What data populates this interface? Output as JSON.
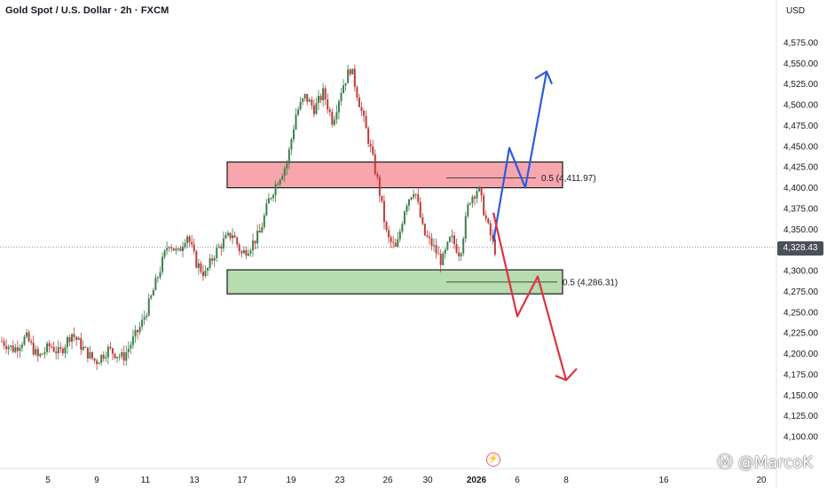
{
  "header": {
    "title": "Gold Spot / U.S. Dollar · 2h · FXCM",
    "currency": "USD"
  },
  "price_tag": {
    "value": "4,328.43"
  },
  "watermark": {
    "text": "Ⓜ @MarcoK"
  },
  "colors": {
    "up_candle": "#3c7f4a",
    "down_candle": "#c23a3a",
    "resistance_zone": "#f7a6ad",
    "support_zone": "#b6dcb0",
    "bull_arrow": "#2c5bdc",
    "bear_arrow": "#e0313f",
    "axis_text": "#131722"
  },
  "chart_data": {
    "type": "candlestick",
    "symbol": "Gold Spot / U.S. Dollar",
    "timeframe": "2h",
    "source": "FXCM",
    "ylim": [
      4075,
      4600
    ],
    "y_ticks": [
      "4,100.00",
      "4,125.00",
      "4,150.00",
      "4,175.00",
      "4,200.00",
      "4,225.00",
      "4,250.00",
      "4,275.00",
      "4,300.00",
      "4,325.00",
      "4,350.00",
      "4,375.00",
      "4,400.00",
      "4,425.00",
      "4,450.00",
      "4,475.00",
      "4,500.00",
      "4,525.00",
      "4,550.00",
      "4,575.00"
    ],
    "x_ticks": [
      "5",
      "9",
      "11",
      "13",
      "17",
      "19",
      "23",
      "26",
      "30",
      "2026",
      "6",
      "8",
      "16",
      "20"
    ],
    "last_price": 4328.43,
    "price_path": [
      [
        0,
        4215
      ],
      [
        0.04,
        4205
      ],
      [
        0.08,
        4220
      ],
      [
        0.12,
        4195
      ],
      [
        0.16,
        4210
      ],
      [
        0.19,
        4200
      ],
      [
        0.23,
        4225
      ],
      [
        0.27,
        4205
      ],
      [
        0.31,
        4190
      ],
      [
        0.35,
        4205
      ],
      [
        0.4,
        4195
      ],
      [
        0.43,
        4215
      ],
      [
        0.46,
        4235
      ],
      [
        0.49,
        4265
      ],
      [
        0.52,
        4300
      ],
      [
        0.55,
        4335
      ],
      [
        0.58,
        4320
      ],
      [
        0.61,
        4345
      ],
      [
        0.64,
        4310
      ],
      [
        0.67,
        4295
      ],
      [
        0.7,
        4320
      ],
      [
        0.73,
        4335
      ],
      [
        0.76,
        4345
      ],
      [
        0.79,
        4320
      ],
      [
        0.82,
        4330
      ],
      [
        0.85,
        4345
      ],
      [
        0.88,
        4385
      ],
      [
        0.91,
        4410
      ],
      [
        0.94,
        4430
      ],
      [
        0.97,
        4490
      ],
      [
        1.0,
        4510
      ],
      [
        1.03,
        4495
      ],
      [
        1.06,
        4515
      ],
      [
        1.09,
        4480
      ],
      [
        1.12,
        4520
      ],
      [
        1.15,
        4545
      ],
      [
        1.18,
        4500
      ],
      [
        1.21,
        4455
      ],
      [
        1.24,
        4405
      ],
      [
        1.27,
        4340
      ],
      [
        1.3,
        4325
      ],
      [
        1.33,
        4380
      ],
      [
        1.36,
        4400
      ],
      [
        1.39,
        4345
      ],
      [
        1.42,
        4330
      ],
      [
        1.45,
        4310
      ],
      [
        1.48,
        4340
      ],
      [
        1.51,
        4320
      ],
      [
        1.54,
        4385
      ],
      [
        1.57,
        4400
      ],
      [
        1.6,
        4355
      ],
      [
        1.63,
        4320
      ]
    ],
    "zones": [
      {
        "name": "resistance",
        "top": 4431,
        "bottom": 4400
      },
      {
        "name": "support",
        "top": 4301,
        "bottom": 4272
      }
    ],
    "annotations": [
      {
        "label": "0.5 (4,411.97)",
        "value": 4411.97
      },
      {
        "label": "0.5 (4,286.31)",
        "value": 4286.31
      }
    ],
    "scenario_bull": [
      [
        4335
      ],
      [
        4448
      ],
      [
        4400
      ],
      [
        4540
      ]
    ],
    "scenario_bear": [
      [
        4370
      ],
      [
        4245
      ],
      [
        4293
      ],
      [
        4168
      ]
    ]
  }
}
